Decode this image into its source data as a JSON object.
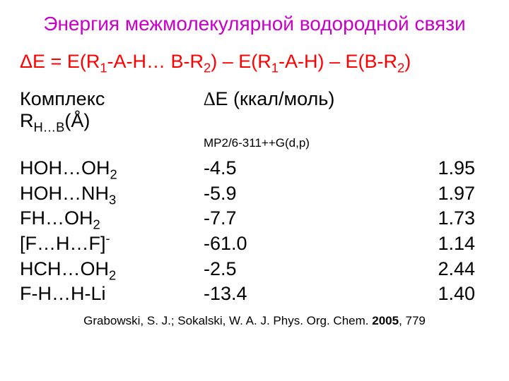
{
  "colors": {
    "title": "#c800c8",
    "equation": "#ff0000",
    "body": "#000000",
    "background": "#ffffff"
  },
  "fontsizes_pt": {
    "title": 21,
    "equation": 20,
    "body": 20,
    "method": 13,
    "citation": 13
  },
  "title": "Энергия межмолекулярной водородной связи",
  "equation": {
    "lhs": "ΔE",
    "eq": "  =  ",
    "t1_a": "E(R",
    "t1_sub1": "1",
    "t1_b": "-A-H… B-R",
    "t1_sub2": "2",
    "t1_c": ")",
    "minus1": " – ",
    "t2_a": "E(R",
    "t2_sub1": "1",
    "t2_b": "-A-H)",
    "minus2": " – ",
    "t3_a": "E(B-R",
    "t3_sub1": "2",
    "t3_b": ")"
  },
  "headers": {
    "complex": "Комплекс",
    "dE_pre": "∆",
    "dE_post": "E (ккал/моль)",
    "r_pre": "R",
    "r_sub": "H…B",
    "r_post": "(Å)"
  },
  "method": "MP2/6-311++G(d,p)",
  "rows": [
    {
      "c_a": "HOH…OH",
      "c_sub": "2",
      "c_b": "",
      "c_sup": "",
      "dE": "-4.5",
      "r": "1.95"
    },
    {
      "c_a": "HOH…NH",
      "c_sub": "3",
      "c_b": "",
      "c_sup": "",
      "dE": "-5.9",
      "r": "1.97"
    },
    {
      "c_a": "FH…OH",
      "c_sub": "2",
      "c_b": "",
      "c_sup": "",
      "dE": "-7.7",
      "r": "1.73"
    },
    {
      "c_a": "[F…H…F]",
      "c_sub": "",
      "c_b": "",
      "c_sup": "-",
      "dE": "-61.0",
      "r": "1.14"
    },
    {
      "c_a": "HCH…OH",
      "c_sub": "2",
      "c_b": "",
      "c_sup": "",
      "dE": "-2.5",
      "r": "2.44"
    },
    {
      "c_a": "F-H…H-Li",
      "c_sub": "",
      "c_b": "",
      "c_sup": "",
      "dE": "-13.4",
      "r": "1.40"
    }
  ],
  "citation": {
    "pre": "Grabowski, S. J.; Sokalski, W. A. J. Phys. Org. Chem. ",
    "year": "2005",
    "post": ", 779"
  }
}
